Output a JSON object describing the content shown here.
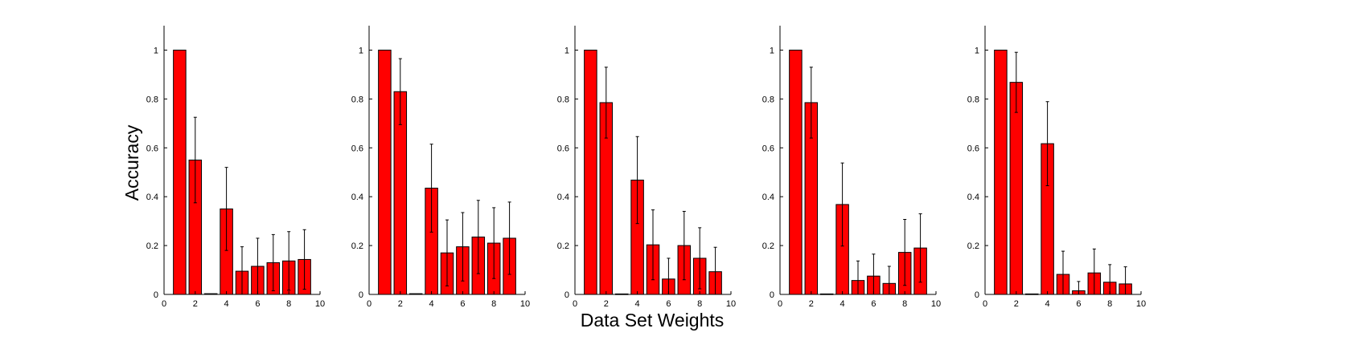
{
  "figure": {
    "ylabel": "Accuracy",
    "xlabel": "Data Set Weights"
  },
  "chart_data": [
    {
      "type": "bar",
      "x": [
        1,
        2,
        3,
        4,
        5,
        6,
        7,
        8,
        9
      ],
      "values": [
        1.0,
        0.55,
        0.003,
        0.35,
        0.095,
        0.115,
        0.13,
        0.137,
        0.143
      ],
      "errors": [
        0.0,
        0.175,
        0.0,
        0.17,
        0.1,
        0.115,
        0.115,
        0.12,
        0.122
      ],
      "xlim": [
        0,
        10
      ],
      "ylim": [
        0,
        1.1
      ],
      "xticks": [
        "0",
        "2",
        "4",
        "6",
        "8",
        "10"
      ],
      "yticks": [
        "0",
        "0.2",
        "0.4",
        "0.6",
        "0.8",
        "1"
      ],
      "color": "#ff0000"
    },
    {
      "type": "bar",
      "x": [
        1,
        2,
        3,
        4,
        5,
        6,
        7,
        8,
        9
      ],
      "values": [
        1.0,
        0.83,
        0.003,
        0.435,
        0.17,
        0.195,
        0.235,
        0.21,
        0.23
      ],
      "errors": [
        0.0,
        0.135,
        0.0,
        0.18,
        0.135,
        0.14,
        0.15,
        0.145,
        0.148
      ],
      "xlim": [
        0,
        10
      ],
      "ylim": [
        0,
        1.1
      ],
      "xticks": [
        "0",
        "2",
        "4",
        "6",
        "8",
        "10"
      ],
      "yticks": [
        "0",
        "0.2",
        "0.4",
        "0.6",
        "0.8",
        "1"
      ],
      "color": "#ff0000"
    },
    {
      "type": "bar",
      "x": [
        1,
        2,
        3,
        4,
        5,
        6,
        7,
        8,
        9
      ],
      "values": [
        1.0,
        0.785,
        0.002,
        0.468,
        0.203,
        0.063,
        0.2,
        0.148,
        0.093
      ],
      "errors": [
        0.0,
        0.145,
        0.0,
        0.178,
        0.143,
        0.085,
        0.14,
        0.125,
        0.1
      ],
      "xlim": [
        0,
        10
      ],
      "ylim": [
        0,
        1.1
      ],
      "xticks": [
        "0",
        "2",
        "4",
        "6",
        "8",
        "10"
      ],
      "yticks": [
        "0",
        "0.2",
        "0.4",
        "0.6",
        "0.8",
        "1"
      ],
      "color": "#ff0000"
    },
    {
      "type": "bar",
      "x": [
        1,
        2,
        3,
        4,
        5,
        6,
        7,
        8,
        9
      ],
      "values": [
        1.0,
        0.785,
        0.002,
        0.368,
        0.057,
        0.075,
        0.045,
        0.172,
        0.19
      ],
      "errors": [
        0.0,
        0.145,
        0.0,
        0.17,
        0.08,
        0.09,
        0.07,
        0.135,
        0.14
      ],
      "xlim": [
        0,
        10
      ],
      "ylim": [
        0,
        1.1
      ],
      "xticks": [
        "0",
        "2",
        "4",
        "6",
        "8",
        "10"
      ],
      "yticks": [
        "0",
        "0.2",
        "0.4",
        "0.6",
        "0.8",
        "1"
      ],
      "color": "#ff0000"
    },
    {
      "type": "bar",
      "x": [
        1,
        2,
        3,
        4,
        5,
        6,
        7,
        8,
        9
      ],
      "values": [
        1.0,
        0.868,
        0.002,
        0.617,
        0.082,
        0.015,
        0.088,
        0.05,
        0.043
      ],
      "errors": [
        0.0,
        0.123,
        0.0,
        0.172,
        0.095,
        0.038,
        0.098,
        0.072,
        0.07
      ],
      "xlim": [
        0,
        10
      ],
      "ylim": [
        0,
        1.1
      ],
      "xticks": [
        "0",
        "2",
        "4",
        "6",
        "8",
        "10"
      ],
      "yticks": [
        "0",
        "0.2",
        "0.4",
        "0.6",
        "0.8",
        "1"
      ],
      "color": "#ff0000"
    }
  ]
}
